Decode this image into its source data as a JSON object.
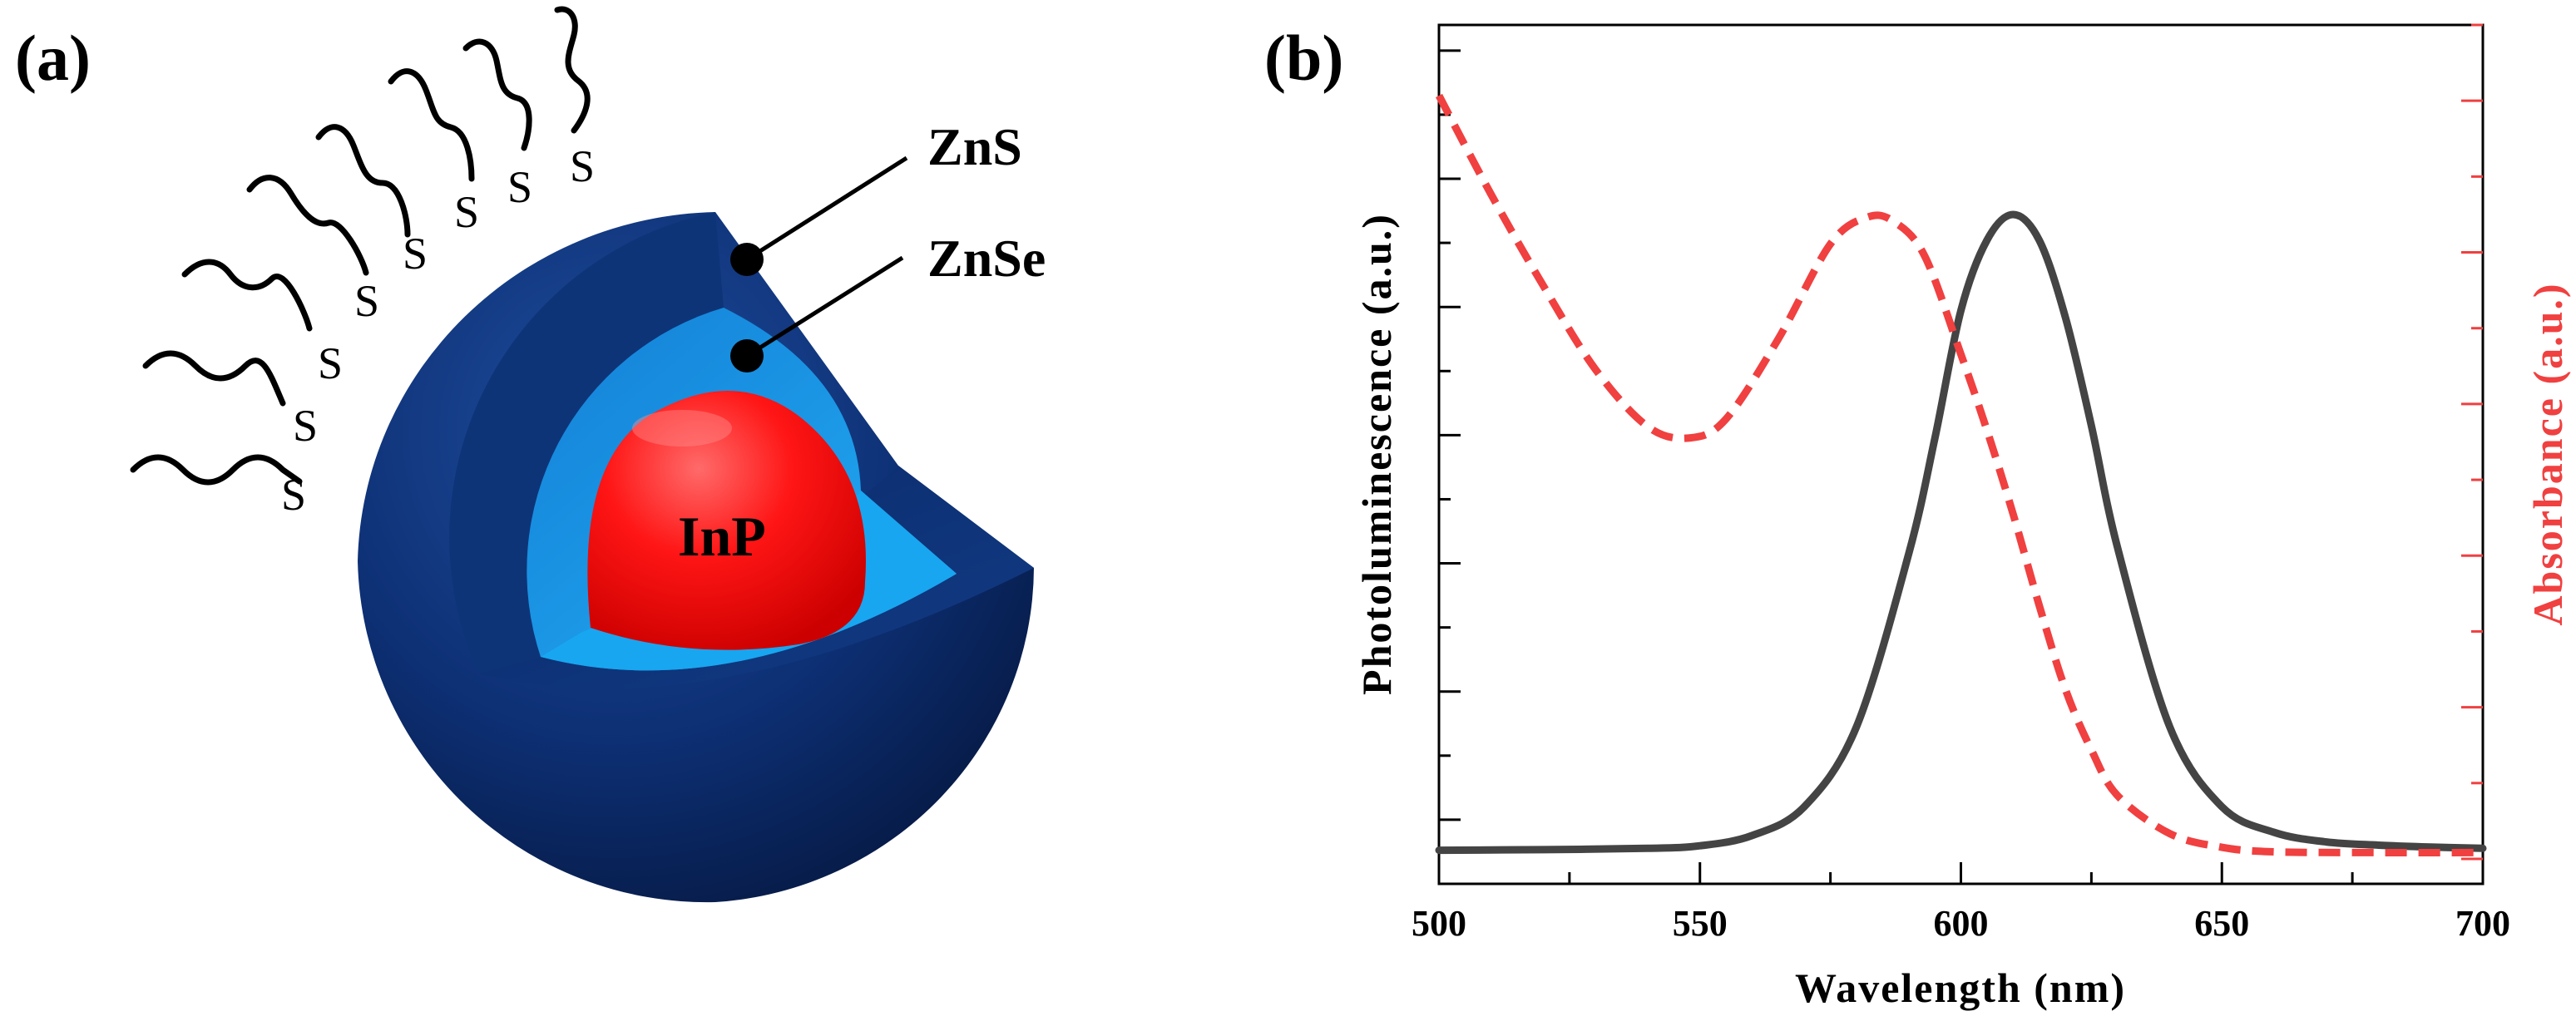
{
  "panel_a": {
    "label": "(a)",
    "core_label": "InP",
    "inner_shell_label": "ZnSe",
    "outer_shell_label": "ZnS",
    "ligand_atom": "S",
    "ligand_count": 8,
    "colors": {
      "core": "#ff1a1a",
      "inner_shell": "#1aa3ee",
      "outer_shell": "#0b2d6e"
    }
  },
  "panel_b": {
    "label": "(b)",
    "chart_data": {
      "type": "line",
      "xlabel": "Wavelength (nm)",
      "ylabel_left": "Photoluminescence (a.u.)",
      "ylabel_right": "Absorbance (a.u.)",
      "xlim": [
        500,
        700
      ],
      "x_ticks": [
        500,
        550,
        600,
        650,
        700
      ],
      "ylim": [
        0,
        1
      ],
      "series": [
        {
          "name": "Photoluminescence",
          "axis": "left",
          "style": "solid",
          "color": "#444444",
          "x": [
            500,
            520,
            540,
            550,
            560,
            570,
            580,
            590,
            595,
            600,
            605,
            610,
            615,
            620,
            625,
            630,
            640,
            650,
            660,
            670,
            680,
            690,
            700
          ],
          "y": [
            0.007,
            0.008,
            0.01,
            0.014,
            0.03,
            0.075,
            0.2,
            0.47,
            0.65,
            0.85,
            0.96,
            1.0,
            0.96,
            0.84,
            0.67,
            0.48,
            0.2,
            0.075,
            0.035,
            0.02,
            0.015,
            0.012,
            0.01
          ]
        },
        {
          "name": "Absorbance",
          "axis": "right",
          "style": "dashed",
          "color": "#f04040",
          "x": [
            500,
            510,
            520,
            530,
            540,
            548,
            555,
            565,
            575,
            582,
            587,
            593,
            600,
            605,
            610,
            615,
            620,
            625,
            630,
            640,
            650,
            660,
            680,
            700
          ],
          "y": [
            1.0,
            0.87,
            0.75,
            0.64,
            0.565,
            0.55,
            0.575,
            0.68,
            0.805,
            0.84,
            0.835,
            0.79,
            0.66,
            0.56,
            0.45,
            0.33,
            0.22,
            0.14,
            0.08,
            0.03,
            0.012,
            0.006,
            0.005,
            0.005
          ]
        }
      ]
    }
  }
}
